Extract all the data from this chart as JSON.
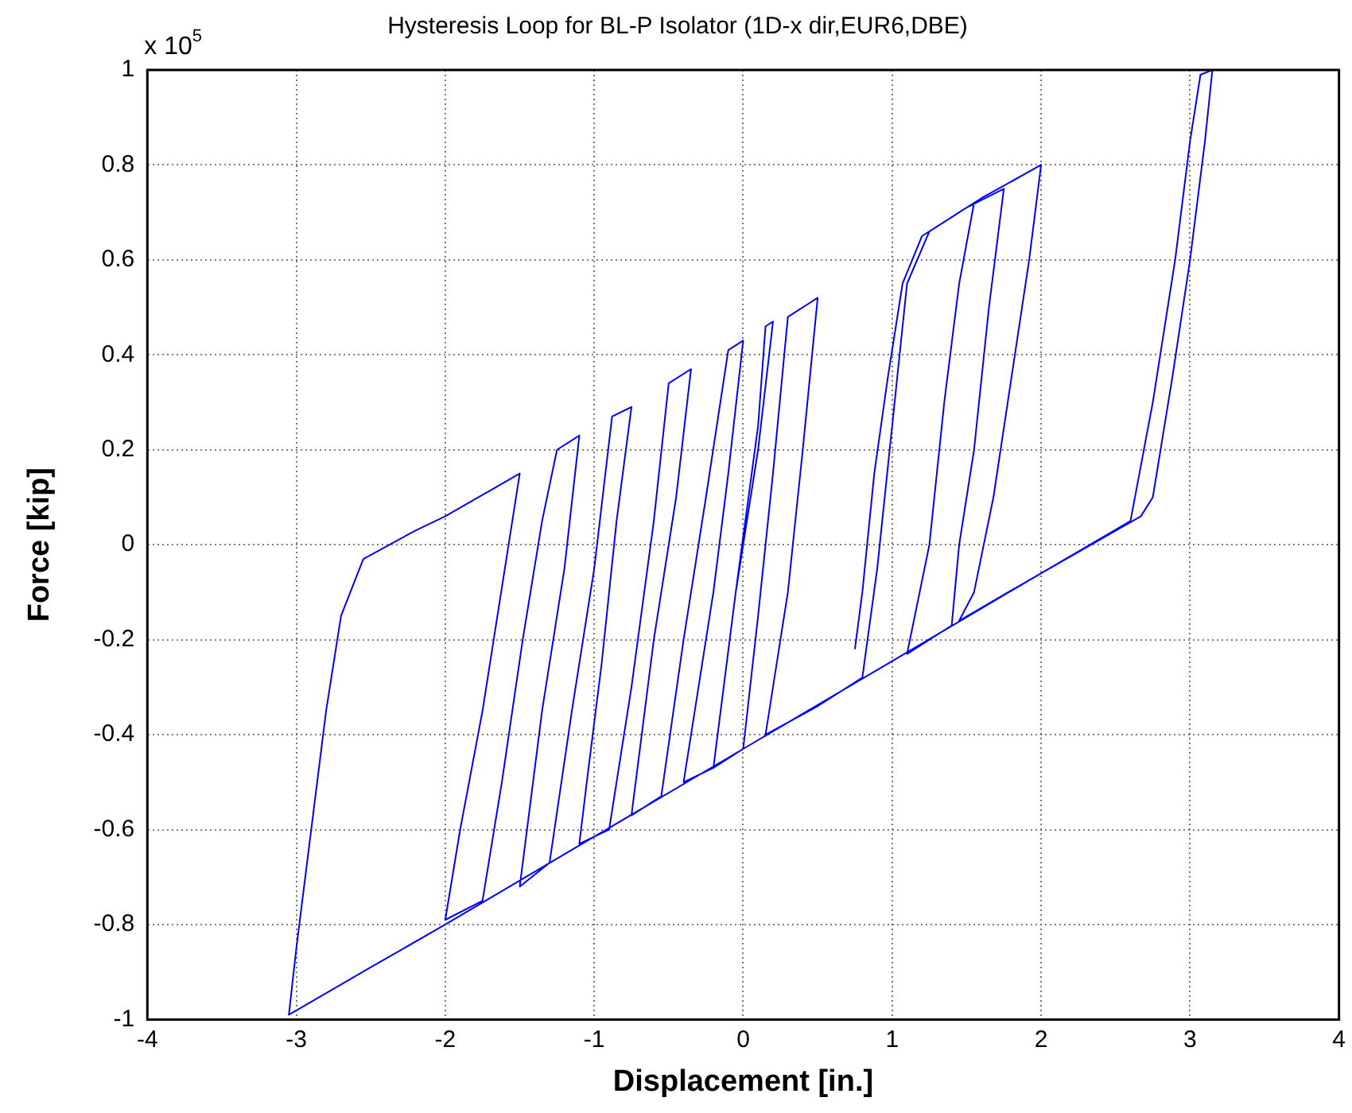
{
  "chart_data": {
    "type": "line",
    "title": "Hysteresis Loop for BL-P Isolator (1D-x dir,EUR6,DBE)",
    "xlabel": "Displacement [in.]",
    "ylabel": "Force [kip]",
    "annotations": [
      "x 10$^{5}$"
    ],
    "xlim": [
      -4,
      4
    ],
    "xticks": [
      -4,
      -3,
      -2,
      -1,
      0,
      1,
      2,
      3,
      4
    ],
    "ylim": [
      -1,
      1
    ],
    "yticks": [
      -1,
      -0.8,
      -0.6,
      -0.4,
      -0.2,
      0,
      0.2,
      0.4,
      0.6,
      0.8,
      1
    ],
    "grid": true,
    "legend": false,
    "marker": "none",
    "line_style": "solid",
    "series": [
      {
        "color": "#0000ff",
        "x": [
          0.75,
          0.8,
          0.88,
          0.97,
          1.07,
          1.2,
          1.6,
          2.0,
          1.92,
          1.8,
          1.68,
          1.55,
          1.45,
          2.0,
          2.6,
          2.75,
          2.9,
          3.0,
          3.07,
          3.15,
          3.1,
          3.0,
          2.88,
          2.75,
          2.67,
          2.0,
          1.0,
          0,
          -1,
          -2,
          -2.5,
          -3.05,
          -3.0,
          -2.9,
          -2.8,
          -2.7,
          -2.55,
          -2.2,
          -2,
          -1.5,
          -1.6,
          -1.75,
          -1.9,
          -2.0,
          -1.75,
          -1.62,
          -1.48,
          -1.35,
          -1.25,
          -1.1,
          -1.2,
          -1.35,
          -1.5,
          -1.3,
          -1.15,
          -1.0,
          -0.88,
          -0.75,
          -0.85,
          -0.95,
          -1.05,
          -1.1,
          -0.9,
          -0.75,
          -0.6,
          -0.5,
          -0.35,
          -0.45,
          -0.6,
          -0.75,
          -0.55,
          -0.4,
          -0.25,
          -0.1,
          0.0,
          -0.1,
          -0.2,
          -0.3,
          -0.4,
          -0.2,
          -0.05,
          0.1,
          0.15,
          0.2,
          0.1,
          -0.05,
          -0.2,
          0.0,
          0.1,
          0.2,
          0.3,
          0.5,
          0.4,
          0.3,
          0.15,
          0.5,
          0.8,
          0.9,
          1.0,
          1.1,
          1.25,
          1.5,
          1.75,
          1.65,
          1.55,
          1.45,
          1.4,
          1.1,
          1.25,
          1.35,
          1.45,
          1.55
        ],
        "values": [
          -0.22,
          -0.1,
          0.15,
          0.35,
          0.55,
          0.65,
          0.73,
          0.8,
          0.6,
          0.35,
          0.1,
          -0.1,
          -0.16,
          -0.06,
          0.05,
          0.3,
          0.6,
          0.85,
          0.99,
          1.0,
          0.85,
          0.6,
          0.35,
          0.1,
          0.06,
          -0.06,
          -0.245,
          -0.43,
          -0.615,
          -0.8,
          -0.89,
          -0.99,
          -0.85,
          -0.6,
          -0.35,
          -0.15,
          -0.03,
          0.03,
          0.06,
          0.15,
          -0.05,
          -0.35,
          -0.6,
          -0.79,
          -0.75,
          -0.5,
          -0.2,
          0.05,
          0.2,
          0.23,
          -0.05,
          -0.35,
          -0.72,
          -0.67,
          -0.35,
          -0.05,
          0.27,
          0.29,
          0.05,
          -0.25,
          -0.5,
          -0.63,
          -0.6,
          -0.3,
          0.05,
          0.34,
          0.37,
          0.1,
          -0.2,
          -0.57,
          -0.53,
          -0.2,
          0.1,
          0.41,
          0.43,
          0.15,
          -0.1,
          -0.3,
          -0.5,
          -0.47,
          -0.1,
          0.25,
          0.46,
          0.47,
          0.2,
          -0.1,
          -0.47,
          -0.43,
          -0.15,
          0.15,
          0.48,
          0.52,
          0.2,
          -0.1,
          -0.4,
          -0.34,
          -0.28,
          -0.05,
          0.25,
          0.55,
          0.66,
          0.71,
          0.75,
          0.5,
          0.2,
          0.0,
          -0.17,
          -0.23,
          0.0,
          0.3,
          0.55,
          0.72
        ]
      }
    ]
  }
}
